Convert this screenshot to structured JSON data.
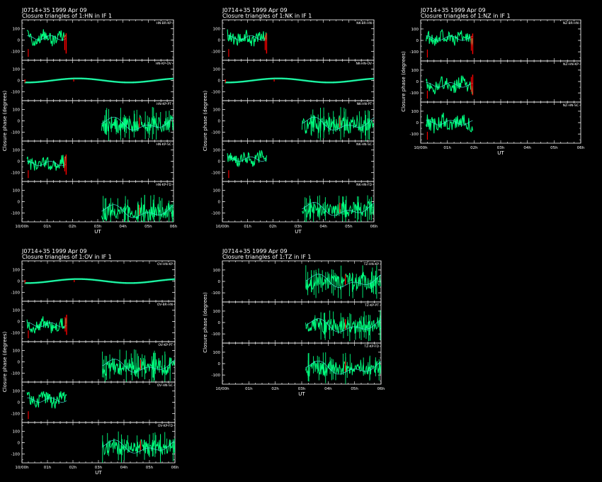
{
  "colors": {
    "background": "#000000",
    "axis": "#ffffff",
    "fit": "#40e0d0",
    "data": "#00ff7f",
    "flagged": "#ff0000"
  },
  "xlabel": "UT",
  "ylabel": "Closure phase  (degrees)",
  "x_tick_labels": [
    "10/00h",
    "01h",
    "02h",
    "03h",
    "04h",
    "05h",
    "06h"
  ],
  "chart_data": [
    {
      "type": "line",
      "source": "J0714+35  1999 Apr 09",
      "title": "Closure triangles of 1:HN in IF 1",
      "xlabel": "UT",
      "ylabel": "Closure phase  (degrees)",
      "x_ticks": [
        "10/00h",
        "01h",
        "02h",
        "03h",
        "04h",
        "05h",
        "06h"
      ],
      "y_ticks": [
        -100,
        0,
        100
      ],
      "ylim": [
        -180,
        180
      ],
      "panels": [
        {
          "triangle": "HN-BR-KP",
          "x_range": [
            0.2,
            1.75
          ],
          "mean": 20,
          "amplitude": 55,
          "kind": "noisy",
          "flag_end": true
        },
        {
          "triangle": "HN-KP-OV",
          "x_range": [
            0.1,
            6.0
          ],
          "mean": 0,
          "amplitude": 20,
          "kind": "smooth",
          "flag_end": false
        },
        {
          "triangle": "HN-KP-PT",
          "x_range": [
            3.15,
            6.0
          ],
          "mean": -30,
          "amplitude": 110,
          "kind": "wild",
          "flag_end": false
        },
        {
          "triangle": "HN-KP-SC",
          "x_range": [
            0.2,
            1.75
          ],
          "mean": -20,
          "amplitude": 60,
          "kind": "noisy",
          "flag_end": true
        },
        {
          "triangle": "HN-KP-FD",
          "x_range": [
            3.15,
            6.0
          ],
          "mean": -90,
          "amplitude": 110,
          "kind": "wild",
          "flag_end": false
        }
      ]
    },
    {
      "type": "line",
      "source": "J0714+35  1999 Apr 09",
      "title": "Closure triangles of 1:NK in IF 1",
      "xlabel": "UT",
      "ylabel": "Closure phase  (degrees)",
      "x_ticks": [
        "10/00h",
        "01h",
        "02h",
        "03h",
        "04h",
        "05h",
        "06h"
      ],
      "y_ticks": [
        -100,
        0,
        100
      ],
      "ylim": [
        -180,
        180
      ],
      "panels": [
        {
          "triangle": "NK-BR-HN",
          "x_range": [
            0.2,
            1.75
          ],
          "mean": 20,
          "amplitude": 55,
          "kind": "noisy",
          "flag_end": true
        },
        {
          "triangle": "NK-HN-OV",
          "x_range": [
            0.1,
            6.0
          ],
          "mean": 0,
          "amplitude": 20,
          "kind": "smooth",
          "flag_end": false
        },
        {
          "triangle": "NK-HN-PT",
          "x_range": [
            3.15,
            6.0
          ],
          "mean": -30,
          "amplitude": 110,
          "kind": "wild",
          "flag_end": false
        },
        {
          "triangle": "NK-HN-SC",
          "x_range": [
            0.2,
            1.75
          ],
          "mean": 20,
          "amplitude": 60,
          "kind": "noisy",
          "flag_end": false
        },
        {
          "triangle": "NK-HN-FD",
          "x_range": [
            3.15,
            6.0
          ],
          "mean": -70,
          "amplitude": 100,
          "kind": "wild",
          "flag_end": false
        }
      ]
    },
    {
      "type": "line",
      "source": "J0714+35  1999 Apr 09",
      "title": "Closure triangles of 1:NZ in IF 1",
      "xlabel": "UT",
      "ylabel": "Closure phase  (degrees)",
      "x_ticks": [
        "10/00h",
        "01h",
        "02h",
        "03h",
        "04h",
        "05h",
        "06h"
      ],
      "y_ticks": [
        -100,
        0,
        100
      ],
      "ylim": [
        -180,
        180
      ],
      "panels": [
        {
          "triangle": "NZ-BR-HN",
          "x_range": [
            0.2,
            1.95
          ],
          "mean": 20,
          "amplitude": 55,
          "kind": "noisy",
          "flag_end": true
        },
        {
          "triangle": "NZ-HN-KP",
          "x_range": [
            0.2,
            1.95
          ],
          "mean": -30,
          "amplitude": 60,
          "kind": "noisy",
          "flag_end": true
        },
        {
          "triangle": "NZ-HN-SC",
          "x_range": [
            0.2,
            1.95
          ],
          "mean": 0,
          "amplitude": 70,
          "kind": "noisy",
          "flag_end": false
        }
      ]
    },
    {
      "type": "line",
      "source": "J0714+35  1999 Apr 09",
      "title": "Closure triangles of 1:OV in IF 1",
      "xlabel": "UT",
      "ylabel": "Closure phase  (degrees)",
      "x_ticks": [
        "10/00h",
        "01h",
        "02h",
        "03h",
        "04h",
        "05h",
        "06h"
      ],
      "y_ticks": [
        -100,
        0,
        100
      ],
      "ylim": [
        -180,
        180
      ],
      "panels": [
        {
          "triangle": "OV-HN-KP",
          "x_range": [
            0.1,
            6.0
          ],
          "mean": 0,
          "amplitude": 20,
          "kind": "smooth",
          "flag_end": false
        },
        {
          "triangle": "OV-BR-HN",
          "x_range": [
            0.2,
            1.75
          ],
          "mean": -30,
          "amplitude": 60,
          "kind": "noisy",
          "flag_end": true
        },
        {
          "triangle": "OV-KP-PT",
          "x_range": [
            3.15,
            6.0
          ],
          "mean": -40,
          "amplitude": 110,
          "kind": "wild",
          "flag_end": false
        },
        {
          "triangle": "OV-HN-SC",
          "x_range": [
            0.2,
            1.75
          ],
          "mean": 20,
          "amplitude": 60,
          "kind": "noisy",
          "flag_end": false
        },
        {
          "triangle": "OV-KP-FD",
          "x_range": [
            3.15,
            6.0
          ],
          "mean": -40,
          "amplitude": 100,
          "kind": "wild",
          "flag_end": false
        }
      ]
    },
    {
      "type": "line",
      "source": "J0714+35  1999 Apr 09",
      "title": "Closure triangles of 1:TZ in IF 1",
      "xlabel": "UT",
      "ylabel": "Closure phase  (degrees)",
      "x_ticks": [
        "10/00h",
        "01h",
        "02h",
        "03h",
        "04h",
        "05h",
        "06h"
      ],
      "y_ticks": [
        -100,
        0,
        100
      ],
      "ylim": [
        -180,
        180
      ],
      "panels": [
        {
          "triangle": "TZ-HN-KP",
          "x_range": [
            3.15,
            6.0
          ],
          "mean": 0,
          "amplitude": 110,
          "kind": "wild",
          "flag_end": false
        },
        {
          "triangle": "TZ-KP-PT",
          "x_range": [
            3.15,
            6.0
          ],
          "mean": -30,
          "amplitude": 100,
          "kind": "wild",
          "flag_end": false
        },
        {
          "triangle": "TZ-KP-FD",
          "x_range": [
            3.15,
            6.0
          ],
          "mean": -40,
          "amplitude": 100,
          "kind": "wild",
          "flag_end": false
        }
      ]
    }
  ]
}
